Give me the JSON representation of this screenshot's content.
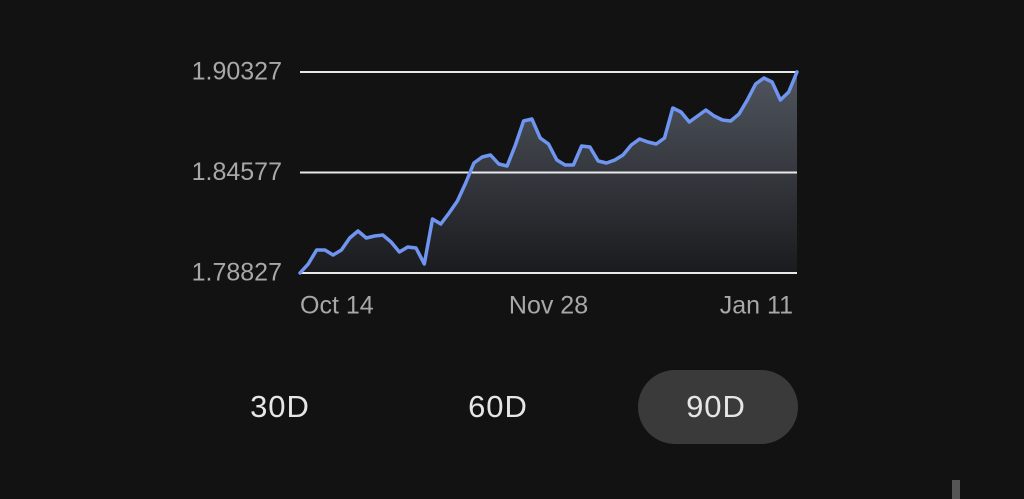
{
  "chart_data": {
    "type": "line",
    "categories": [
      "Oct 14",
      null,
      null,
      null,
      null,
      null,
      null,
      null,
      null,
      null,
      null,
      null,
      null,
      null,
      null,
      null,
      null,
      null,
      null,
      null,
      null,
      null,
      null,
      null,
      null,
      null,
      null,
      null,
      null,
      null,
      "Nov 28",
      null,
      null,
      null,
      null,
      null,
      null,
      null,
      null,
      null,
      null,
      null,
      null,
      null,
      null,
      null,
      null,
      null,
      null,
      null,
      null,
      null,
      null,
      null,
      null,
      null,
      null,
      null,
      null,
      null,
      "Jan 11"
    ],
    "values": [
      1.78827,
      1.79345,
      1.80145,
      1.80145,
      1.79859,
      1.80145,
      1.80832,
      1.81232,
      1.80832,
      1.80946,
      1.81003,
      1.80603,
      1.80031,
      1.80317,
      1.8026,
      1.79345,
      1.81919,
      1.81633,
      1.82262,
      1.82948,
      1.83978,
      1.85122,
      1.85465,
      1.85579,
      1.85065,
      1.8495,
      1.86151,
      1.87524,
      1.87639,
      1.86552,
      1.86209,
      1.85293,
      1.85007,
      1.85007,
      1.86094,
      1.86037,
      1.85236,
      1.85122,
      1.85293,
      1.85579,
      1.86151,
      1.86495,
      1.86323,
      1.86209,
      1.86552,
      1.88268,
      1.88039,
      1.87467,
      1.8781,
      1.88153,
      1.8781,
      1.87581,
      1.87524,
      1.87925,
      1.88725,
      1.89641,
      1.89984,
      1.89755,
      1.88725,
      1.89183,
      1.90327
    ],
    "color": "#6f95f0",
    "ylim": [
      1.78827,
      1.90327
    ],
    "yticks": [
      1.78827,
      1.84577,
      1.90327
    ],
    "grid": true
  },
  "period_buttons": [
    "30D",
    "60D",
    "90D"
  ]
}
